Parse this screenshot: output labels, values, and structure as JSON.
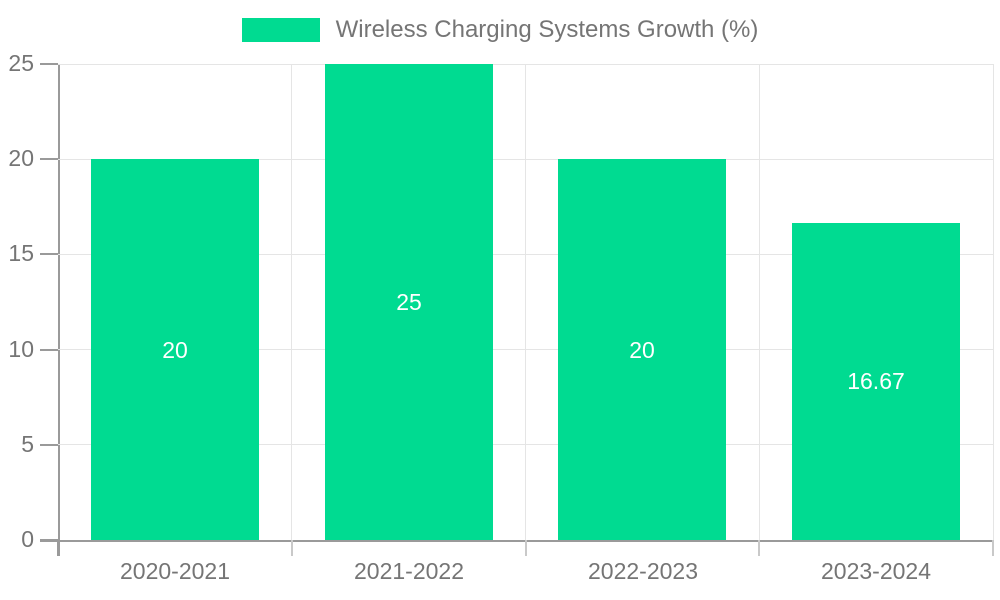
{
  "legend": {
    "label": "Wireless Charging Systems Growth (%)"
  },
  "chart_data": {
    "type": "bar",
    "title": "Wireless Charging Systems Growth (%)",
    "categories": [
      "2020-2021",
      "2021-2022",
      "2022-2023",
      "2023-2024"
    ],
    "values": [
      20,
      25,
      20,
      16.67
    ],
    "bar_labels": [
      "20",
      "25",
      "20",
      "16.67"
    ],
    "xlabel": "",
    "ylabel": "",
    "ylim": [
      0,
      25
    ],
    "yticks": [
      0,
      5,
      10,
      15,
      20,
      25
    ],
    "grid": true,
    "legend_position": "top-center",
    "colors": {
      "bar": "#00db91",
      "bar_label": "#ffffff",
      "legend_text": "#757575",
      "tick_text": "#757575",
      "axis_line": "#9a9a9a",
      "gridline": "#e5e5e5"
    }
  }
}
